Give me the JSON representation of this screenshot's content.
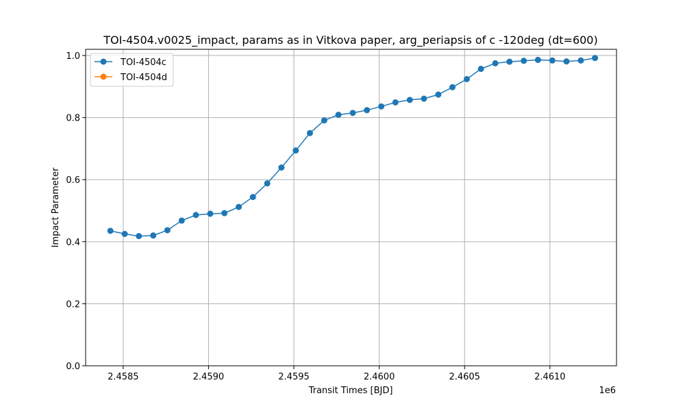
{
  "chart_data": {
    "type": "line",
    "title": "TOI-4504.v0025_impact, params as in Vitkova paper, arg_periapsis of c -120deg (dt=600)",
    "xlabel": "Transit Times [BJD]",
    "ylabel": "Impact Parameter",
    "x_offset_label": "1e6",
    "xlim": [
      2458280,
      2461390
    ],
    "ylim": [
      0.0,
      1.02
    ],
    "x_ticks": [
      2.4585,
      2.459,
      2.4595,
      2.46,
      2.4605,
      2.461
    ],
    "x_tick_labels": [
      "2.4585",
      "2.4590",
      "2.4595",
      "2.4600",
      "2.4605",
      "2.4610"
    ],
    "y_ticks": [
      0.0,
      0.2,
      0.4,
      0.6,
      0.8,
      1.0
    ],
    "y_tick_labels": [
      "0.0",
      "0.2",
      "0.4",
      "0.6",
      "0.8",
      "1.0"
    ],
    "grid": true,
    "legend_position": "top-left",
    "series": [
      {
        "name": "TOI-4504c",
        "color": "#1f77b4",
        "marker": "circle",
        "x": [
          2458425,
          2458509,
          2458592,
          2458676,
          2458759,
          2458843,
          2458926,
          2459010,
          2459093,
          2459177,
          2459260,
          2459344,
          2459427,
          2459511,
          2459594,
          2459678,
          2459761,
          2459845,
          2459928,
          2460012,
          2460095,
          2460179,
          2460262,
          2460346,
          2460429,
          2460513,
          2460596,
          2460680,
          2460763,
          2460847,
          2460930,
          2461014,
          2461097,
          2461181,
          2461264
        ],
        "y": [
          0.435,
          0.425,
          0.418,
          0.42,
          0.437,
          0.468,
          0.486,
          0.49,
          0.492,
          0.512,
          0.544,
          0.588,
          0.639,
          0.694,
          0.75,
          0.791,
          0.809,
          0.815,
          0.824,
          0.836,
          0.849,
          0.857,
          0.861,
          0.874,
          0.898,
          0.924,
          0.957,
          0.975,
          0.98,
          0.983,
          0.986,
          0.984,
          0.981,
          0.984,
          0.992
        ]
      },
      {
        "name": "TOI-4504d",
        "color": "#ff7f0e",
        "marker": "circle",
        "x": [],
        "y": []
      }
    ]
  }
}
